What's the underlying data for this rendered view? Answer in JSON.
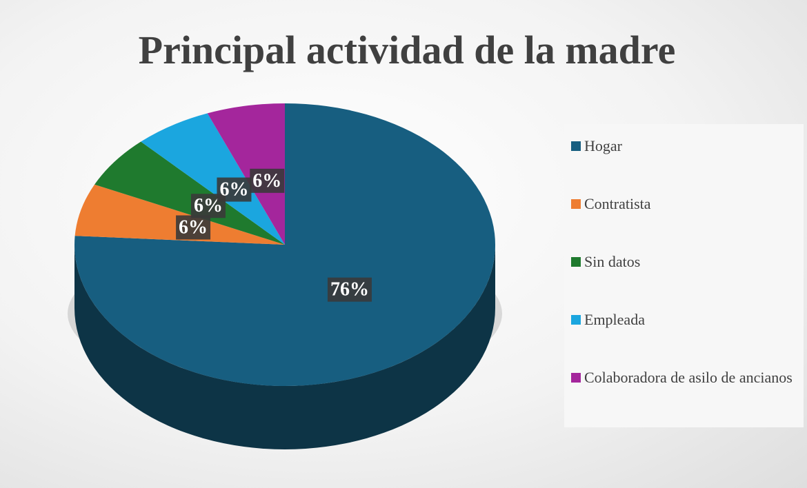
{
  "chart_data": {
    "type": "pie",
    "title": "Principal actividad de la madre",
    "categories": [
      "Hogar",
      "Contratista",
      "Sin datos",
      "Empleada",
      "Colaboradora de asilo de ancianos"
    ],
    "values": [
      76,
      6,
      6,
      6,
      6
    ],
    "value_labels": [
      "76%",
      "6%",
      "6%",
      "6%",
      "6%"
    ],
    "colors": [
      "#175e80",
      "#ee7d31",
      "#1f7a2e",
      "#1ba6df",
      "#a4269c"
    ],
    "legend": "right"
  }
}
